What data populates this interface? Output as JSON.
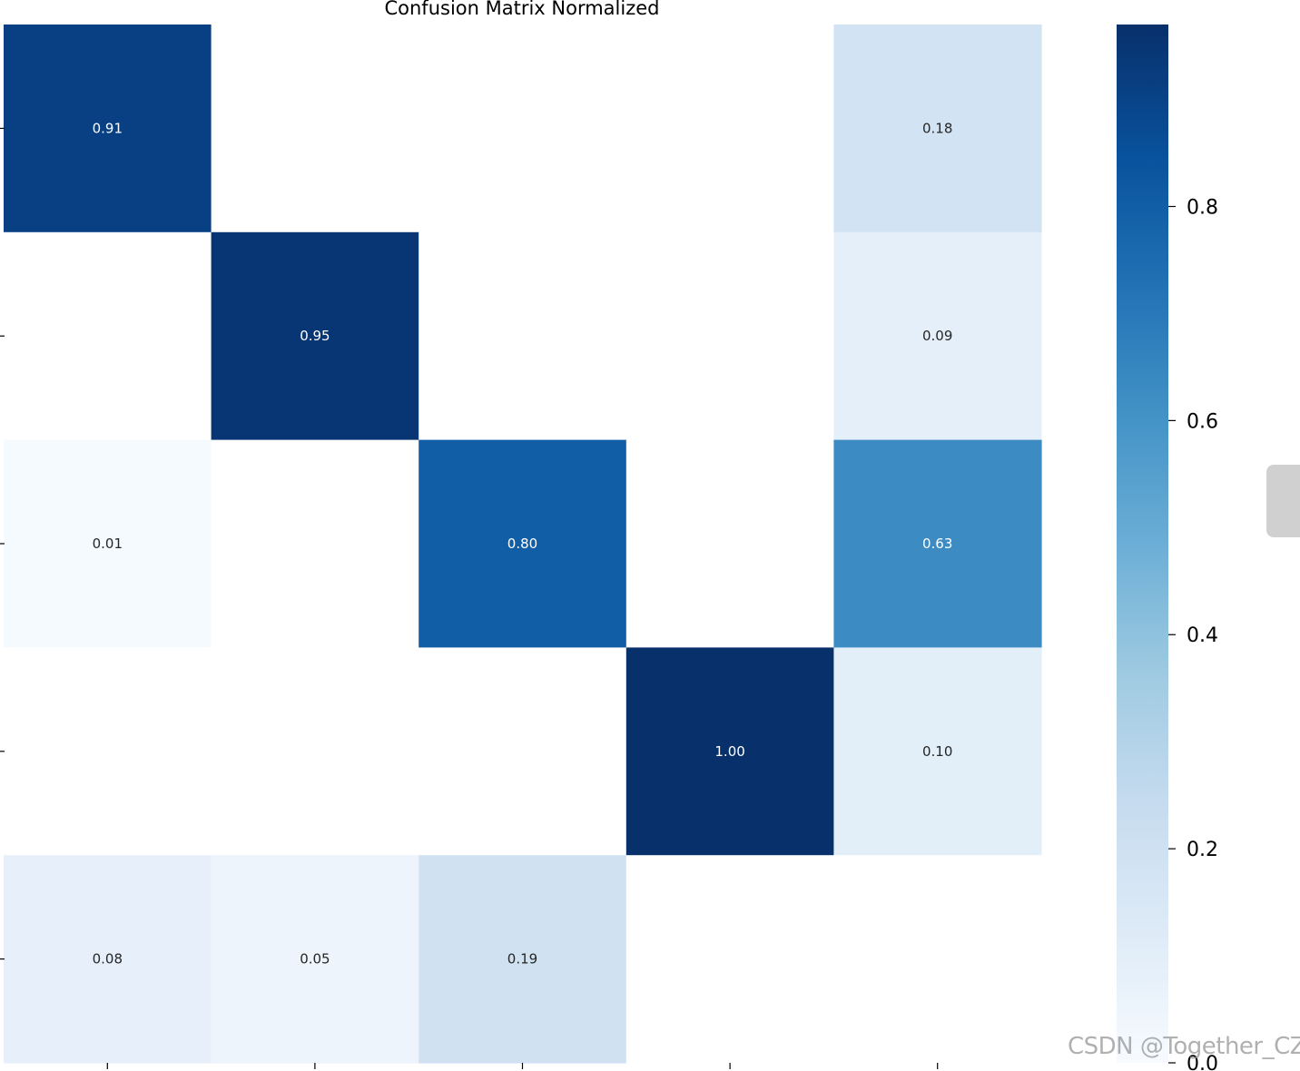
{
  "chart_data": {
    "type": "heatmap",
    "title": "Confusion Matrix Normalized",
    "rows": 5,
    "cols": 5,
    "values": [
      [
        0.91,
        0.0,
        0.0,
        0.0,
        0.18
      ],
      [
        0.0,
        0.95,
        0.0,
        0.0,
        0.09
      ],
      [
        0.01,
        0.0,
        0.8,
        0.0,
        0.63
      ],
      [
        0.0,
        0.0,
        0.0,
        1.0,
        0.1
      ],
      [
        0.08,
        0.05,
        0.19,
        0.0,
        0.0
      ]
    ],
    "labels": [
      [
        "0.91",
        "",
        "",
        "",
        "0.18"
      ],
      [
        "",
        "0.95",
        "",
        "",
        "0.09"
      ],
      [
        "0.01",
        "",
        "0.80",
        "",
        "0.63"
      ],
      [
        "",
        "",
        "",
        "1.00",
        "0.10"
      ],
      [
        "0.08",
        "0.05",
        "0.19",
        "",
        ""
      ]
    ],
    "colormap": "Blues",
    "vmin": 0.0,
    "vmax": 0.97,
    "colorbar_ticks": [
      "0.0",
      "0.2",
      "0.4",
      "0.6",
      "0.8"
    ],
    "colorbar_tick_values": [
      0.0,
      0.2,
      0.4,
      0.6,
      0.8
    ]
  },
  "watermark": "CSDN @Together_CZ"
}
